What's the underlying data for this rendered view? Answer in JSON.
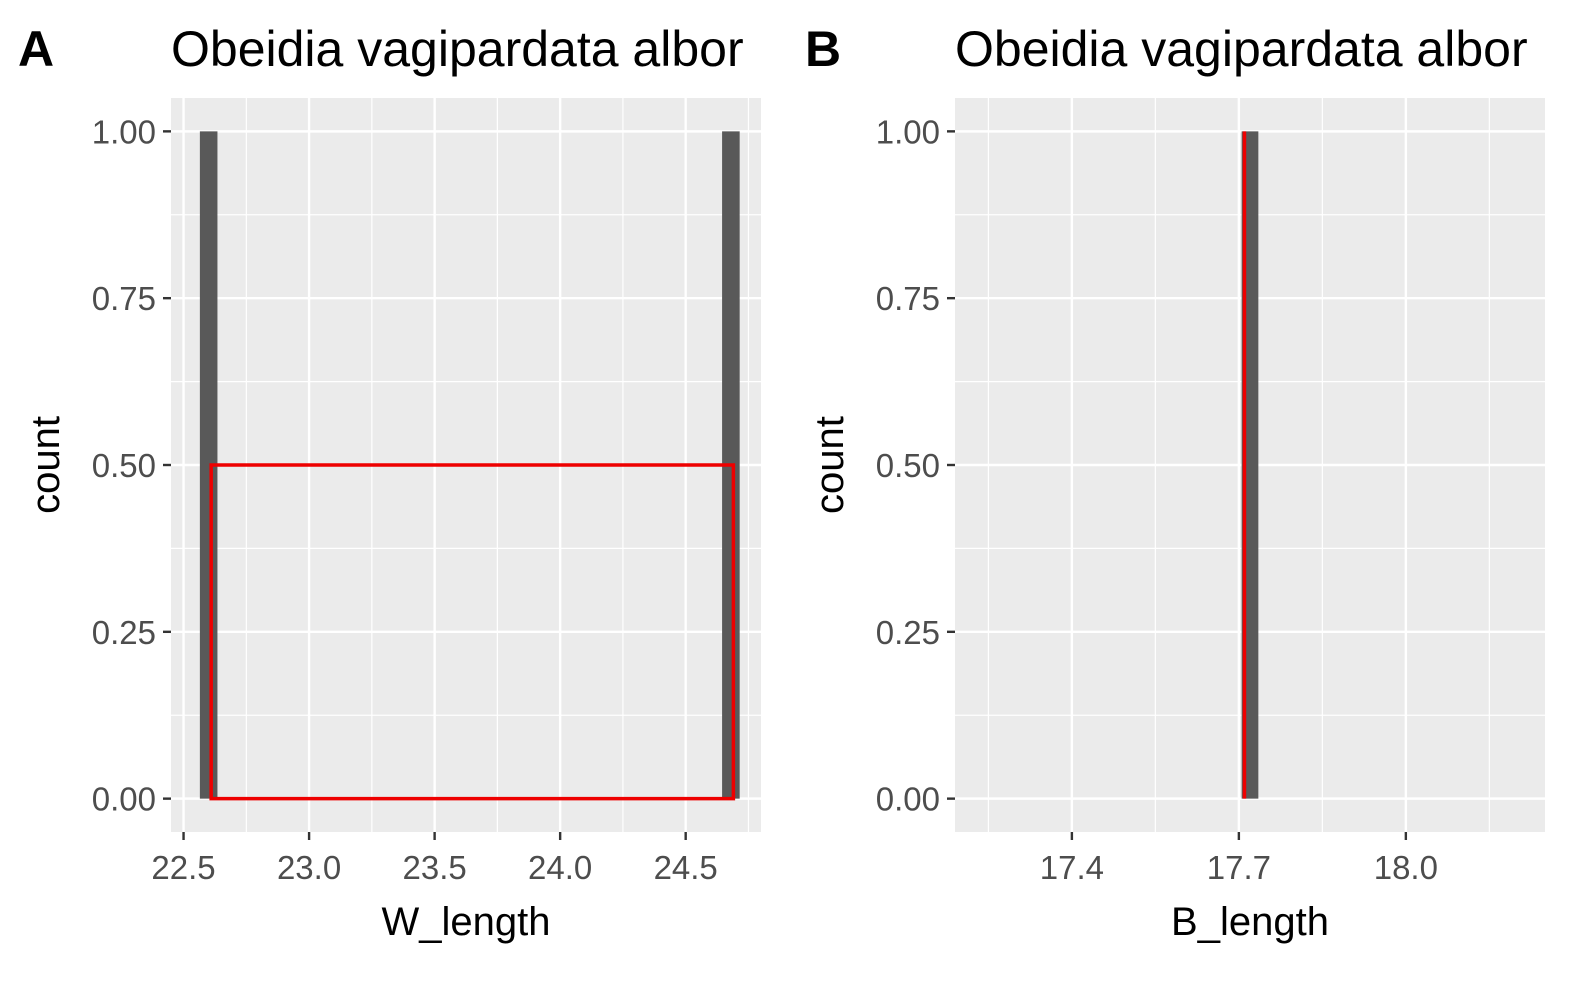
{
  "chart_data": [
    {
      "type": "bar",
      "panel_tag": "A",
      "title": "Obeidia vagipardata albor",
      "xlabel": "W_length",
      "ylabel": "count",
      "xlim": [
        22.45,
        24.8
      ],
      "ylim": [
        -0.05,
        1.05
      ],
      "xticks": [
        22.5,
        23.0,
        23.5,
        24.0,
        24.5
      ],
      "xtick_labels": [
        "22.5",
        "23.0",
        "23.5",
        "24.0",
        "24.5"
      ],
      "yticks": [
        0,
        0.25,
        0.5,
        0.75,
        1
      ],
      "ytick_labels": [
        "0.00",
        "0.25",
        "0.50",
        "0.75",
        "1.00"
      ],
      "bars": [
        {
          "x": 22.6,
          "count": 1
        },
        {
          "x": 24.68,
          "count": 1
        }
      ],
      "bar_width": 0.07,
      "overlay": {
        "type": "rect",
        "x0": 22.61,
        "x1": 24.69,
        "y0": 0,
        "y1": 0.5,
        "color": "#ee0000"
      },
      "bar_color": "#595959",
      "panel_bg": "#ebebeb",
      "grid": true
    },
    {
      "type": "bar",
      "panel_tag": "B",
      "title": "Obeidia vagipardata albor",
      "xlabel": "B_length",
      "ylabel": "count",
      "xlim": [
        17.19,
        18.25
      ],
      "ylim": [
        -0.05,
        1.05
      ],
      "xticks": [
        17.4,
        17.7,
        18.0
      ],
      "xtick_labels": [
        "17.4",
        "17.7",
        "18.0"
      ],
      "yticks": [
        0,
        0.25,
        0.5,
        0.75,
        1
      ],
      "ytick_labels": [
        "0.00",
        "0.25",
        "0.50",
        "0.75",
        "1.00"
      ],
      "bars": [
        {
          "x": 17.72,
          "count": 1
        }
      ],
      "bar_width": 0.03,
      "overlay": {
        "type": "vline",
        "x": 17.71,
        "y0": 0,
        "y1": 1,
        "color": "#ee0000"
      },
      "bar_color": "#595959",
      "panel_bg": "#ebebeb",
      "grid": true
    }
  ]
}
